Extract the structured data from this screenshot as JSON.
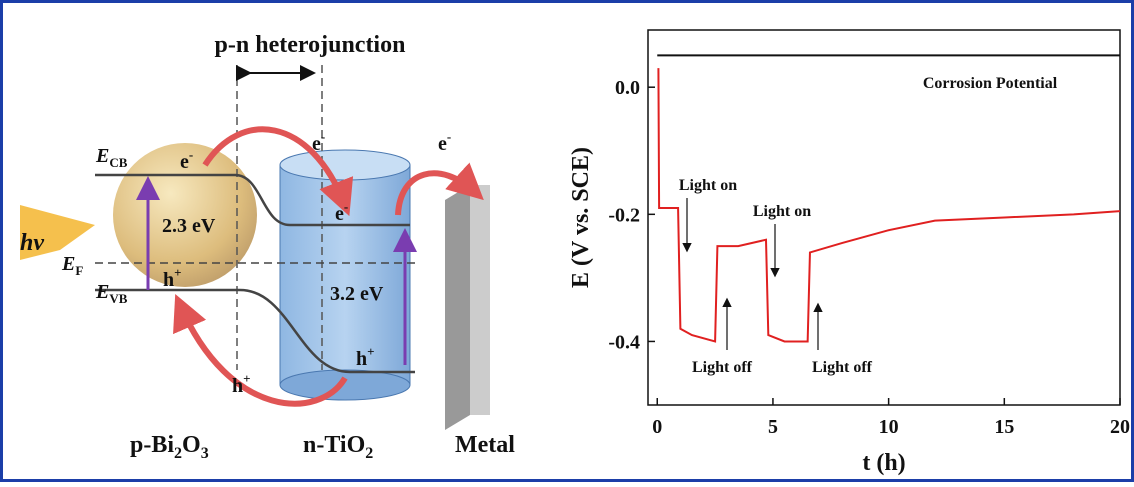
{
  "diagram": {
    "title": "p-n heterojunction",
    "e_cb": [
      "E",
      "CB"
    ],
    "e_f": [
      "E",
      "F"
    ],
    "e_vb": [
      "E",
      "VB"
    ],
    "electron_1": [
      "e",
      "-"
    ],
    "electron_2": [
      "e",
      "-"
    ],
    "electron_3": [
      "e",
      "-"
    ],
    "electron_4": [
      "e",
      "-"
    ],
    "hole_1": [
      "h",
      "+"
    ],
    "hole_2": [
      "h",
      "+"
    ],
    "hole_3": [
      "h",
      "+"
    ],
    "gap_bi2o3": "2.3 eV",
    "gap_tio2": "3.2 eV",
    "photon": "hv",
    "label_bi2o3": [
      "p-Bi",
      "2",
      "O",
      "3"
    ],
    "label_tio2": [
      "n-TiO",
      "2"
    ],
    "label_metal": "Metal"
  },
  "chart_data": {
    "type": "line",
    "x_label": "t (h)",
    "y_label": "E (V vs. SCE)",
    "xlim": [
      -0.4,
      20
    ],
    "ylim": [
      -0.5,
      0.09
    ],
    "xticks": [
      0,
      5,
      10,
      15,
      20
    ],
    "yticks": [
      {
        "value": 0,
        "label": "0.0"
      },
      -0.2,
      -0.4
    ],
    "series": [
      {
        "name": "Corrosion Potential",
        "color": "#111111",
        "x": [
          0,
          5,
          10,
          15,
          20
        ],
        "values": [
          0.05,
          0.05,
          0.05,
          0.05,
          0.05
        ]
      },
      {
        "color": "#e02020",
        "x": [
          0.05,
          0.08,
          0.9,
          1.0,
          1.5,
          2.5,
          2.6,
          3.5,
          4.7,
          4.8,
          5.5,
          6.5,
          6.6,
          8,
          10,
          12,
          15,
          18,
          20
        ],
        "values": [
          0.03,
          -0.19,
          -0.19,
          -0.38,
          -0.39,
          -0.4,
          -0.25,
          -0.25,
          -0.24,
          -0.39,
          -0.4,
          -0.4,
          -0.26,
          -0.245,
          -0.225,
          -0.21,
          -0.205,
          -0.2,
          -0.195
        ]
      }
    ],
    "annotations": [
      "Light on",
      "Light off",
      "Light on",
      "Light off"
    ]
  }
}
